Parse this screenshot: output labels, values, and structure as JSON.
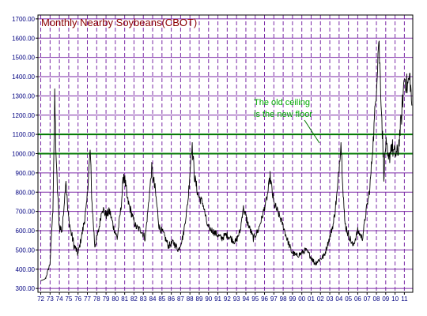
{
  "colors": {
    "grid": "#7b2aa6",
    "title": "#8b0000",
    "axis_labels": "#000080",
    "price_line": "#000000",
    "reference_lines": "#007700",
    "annotation": "#00aa00",
    "frame": "#000000",
    "plot_background": "#ffffff"
  },
  "chart_data": {
    "type": "line",
    "title": "Monthly Nearby Soybeans(CBOT)",
    "xlabel": "",
    "ylabel": "",
    "ylim": [
      280,
      1720
    ],
    "yticks": [
      "300.00",
      "400.00",
      "500.00",
      "600.00",
      "700.00",
      "800.00",
      "900.00",
      "1000.00",
      "1100.00",
      "1200.00",
      "1300.00",
      "1400.00",
      "1500.00",
      "1600.00",
      "1700.00"
    ],
    "xlim": [
      1971.7,
      2011.9
    ],
    "xticks": [
      "72",
      "73",
      "74",
      "75",
      "76",
      "77",
      "78",
      "79",
      "80",
      "81",
      "82",
      "83",
      "84",
      "85",
      "86",
      "87",
      "88",
      "89",
      "90",
      "91",
      "92",
      "93",
      "94",
      "95",
      "96",
      "97",
      "98",
      "99",
      "00",
      "01",
      "02",
      "03",
      "04",
      "05",
      "06",
      "07",
      "08",
      "09",
      "10",
      "11"
    ],
    "grid": true,
    "legend": "none",
    "reference_lines": [
      1000,
      1100
    ],
    "annotation": {
      "lines": [
        "The old ceiling",
        "is the new floor"
      ]
    },
    "series": [
      {
        "x": [
          1972.0,
          1972.5,
          1973.0,
          1973.3,
          1973.5,
          1973.7,
          1974.0,
          1974.3,
          1974.7,
          1974.9,
          1975.2,
          1975.6,
          1976.0,
          1976.5,
          1976.9,
          1977.3,
          1977.5,
          1977.8,
          1978.2,
          1978.6,
          1979.0,
          1979.4,
          1979.8,
          1980.2,
          1980.6,
          1980.9,
          1981.3,
          1981.8,
          1982.2,
          1982.8,
          1983.2,
          1983.6,
          1983.9,
          1984.3,
          1984.7,
          1985.2,
          1985.7,
          1986.2,
          1986.8,
          1987.3,
          1987.8,
          1988.2,
          1988.5,
          1988.9,
          1989.4,
          1989.9,
          1990.4,
          1990.9,
          1991.4,
          1991.9,
          1992.4,
          1992.9,
          1993.4,
          1993.7,
          1994.2,
          1994.8,
          1995.3,
          1995.8,
          1996.3,
          1996.6,
          1997.0,
          1997.4,
          1997.9,
          1998.4,
          1998.9,
          1999.4,
          1999.9,
          2000.4,
          2000.9,
          2001.4,
          2001.9,
          2002.4,
          2002.9,
          2003.4,
          2003.8,
          2004.2,
          2004.6,
          2005.0,
          2005.5,
          2006.0,
          2006.5,
          2006.9,
          2007.3,
          2007.7,
          2008.0,
          2008.25,
          2008.5,
          2008.8,
          2009.0,
          2009.3,
          2009.6,
          2009.9,
          2010.3,
          2010.7,
          2011.0,
          2011.3,
          2011.6,
          2011.8
        ],
        "y": [
          340,
          350,
          430,
          720,
          1280,
          900,
          620,
          600,
          870,
          700,
          600,
          520,
          480,
          600,
          720,
          1020,
          740,
          520,
          600,
          720,
          680,
          700,
          620,
          560,
          720,
          900,
          760,
          680,
          620,
          600,
          560,
          760,
          920,
          800,
          620,
          580,
          520,
          540,
          500,
          580,
          760,
          1050,
          880,
          780,
          740,
          620,
          600,
          580,
          560,
          580,
          560,
          540,
          600,
          720,
          640,
          560,
          600,
          680,
          780,
          880,
          740,
          700,
          640,
          560,
          490,
          470,
          480,
          500,
          470,
          430,
          450,
          470,
          550,
          640,
          800,
          1060,
          640,
          580,
          520,
          600,
          560,
          700,
          820,
          1100,
          1350,
          1600,
          1300,
          900,
          1050,
          950,
          1050,
          1000,
          1000,
          1200,
          1400,
          1350,
          1400,
          1250
        ],
        "noise": [
          0,
          8,
          10,
          40,
          60,
          40,
          30,
          20,
          30,
          25,
          25,
          20,
          18,
          25,
          25,
          40,
          25,
          20,
          20,
          25,
          25,
          25,
          20,
          20,
          30,
          35,
          25,
          20,
          20,
          20,
          18,
          25,
          35,
          25,
          20,
          18,
          18,
          18,
          18,
          18,
          30,
          40,
          30,
          25,
          20,
          18,
          18,
          18,
          18,
          18,
          18,
          18,
          20,
          25,
          18,
          18,
          18,
          20,
          25,
          30,
          25,
          20,
          18,
          18,
          15,
          15,
          15,
          15,
          15,
          15,
          15,
          15,
          18,
          25,
          30,
          40,
          25,
          20,
          18,
          18,
          18,
          22,
          30,
          45,
          60,
          70,
          60,
          45,
          50,
          45,
          50,
          50,
          45,
          55,
          60,
          55,
          55,
          55
        ]
      }
    ]
  }
}
